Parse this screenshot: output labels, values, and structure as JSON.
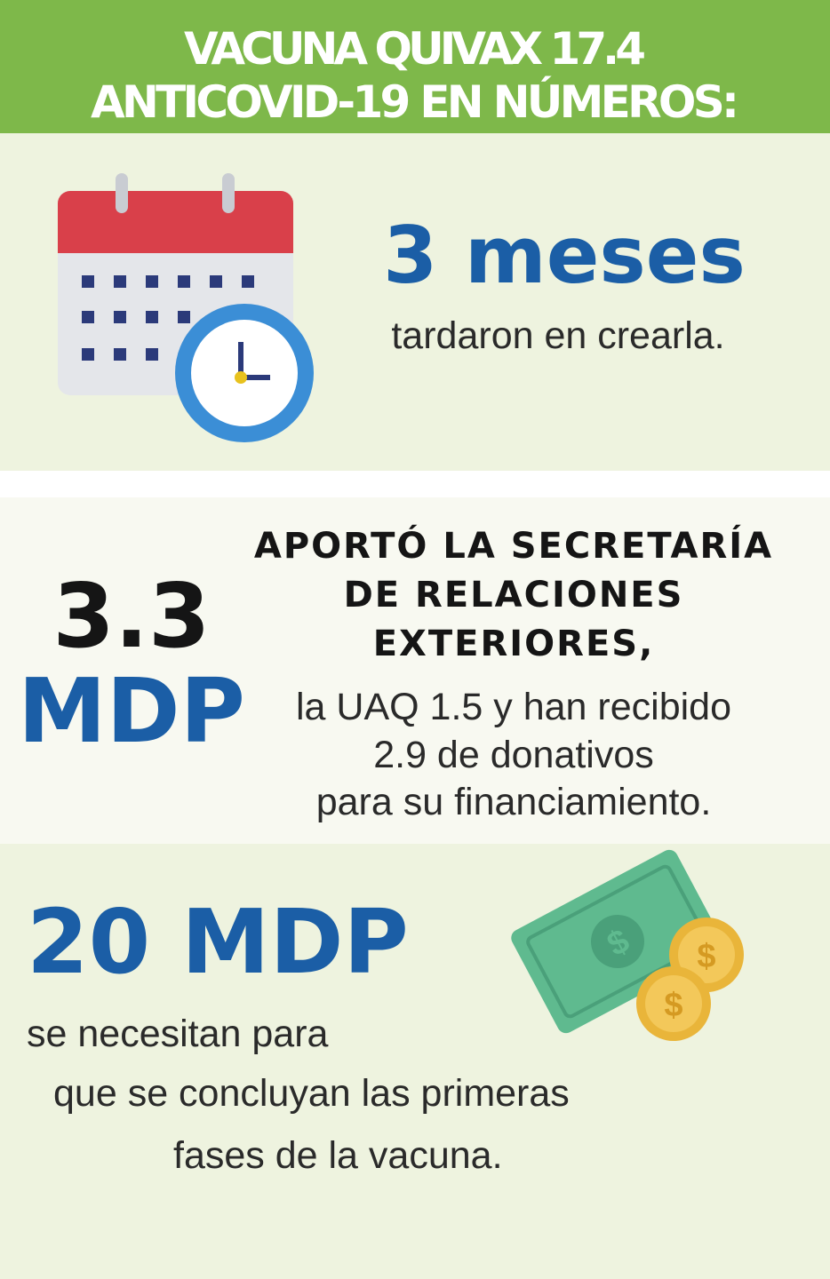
{
  "header": {
    "title": [
      "VACUNA QUIVAX 17.4",
      "ANTICOVID-19  EN NÚMEROS:"
    ]
  },
  "sections": [
    {
      "figure": [
        "3 meses"
      ],
      "text": [
        "tardaron en crearla."
      ]
    },
    {
      "figure": [
        "3.3",
        "MDP"
      ],
      "heading": [
        "APORTÓ LA SECRETARÍA",
        "DE RELACIONES",
        "EXTERIORES,"
      ],
      "text": [
        "la UAQ 1.5 y han recibido",
        "2.9 de donativos",
        "para su financiamiento."
      ]
    },
    {
      "figure": [
        "20 MDP"
      ],
      "text": [
        "se necesitan para",
        "que se concluyan las primeras",
        "fases de la vacuna."
      ]
    }
  ]
}
